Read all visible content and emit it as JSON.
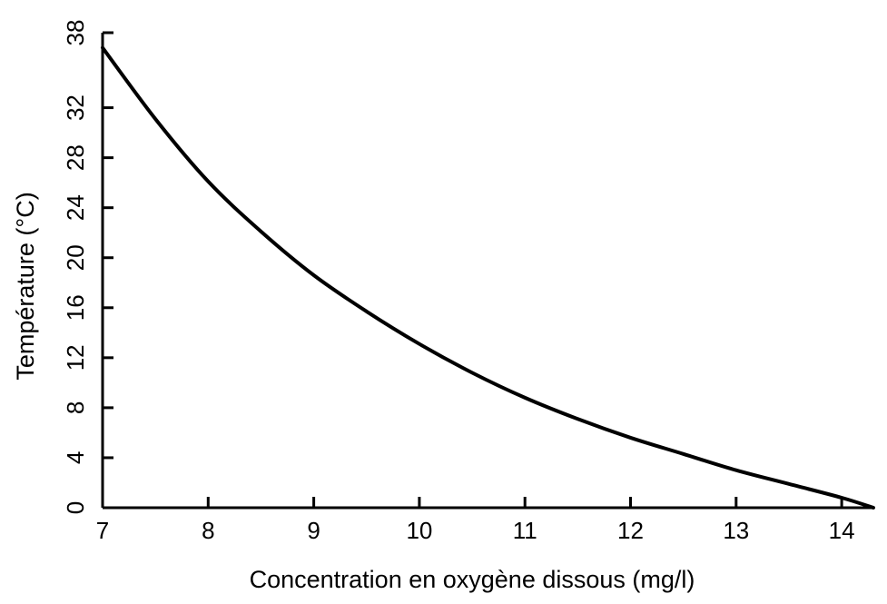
{
  "chart_data": {
    "type": "line",
    "title": "",
    "xlabel": "Concentration en oxygène dissous (mg/l)",
    "ylabel": "Température (°C)",
    "xlim": [
      7,
      14.3
    ],
    "ylim": [
      0,
      38
    ],
    "x_ticks": [
      7,
      8,
      9,
      10,
      11,
      12,
      13,
      14
    ],
    "y_ticks": [
      0,
      4,
      8,
      12,
      16,
      20,
      24,
      28,
      32,
      38
    ],
    "grid": false,
    "legend": "none",
    "line_color": "#000000",
    "series": [
      {
        "x": [
          7.0,
          7.5,
          8.0,
          8.5,
          9.0,
          9.5,
          10.0,
          10.5,
          11.0,
          11.5,
          12.0,
          12.5,
          13.0,
          13.5,
          14.0,
          14.3
        ],
        "y": [
          36.8,
          31.1,
          26.1,
          22.1,
          18.6,
          15.7,
          13.1,
          10.8,
          8.8,
          7.1,
          5.6,
          4.3,
          3.0,
          1.9,
          0.8,
          0.0
        ]
      }
    ]
  }
}
